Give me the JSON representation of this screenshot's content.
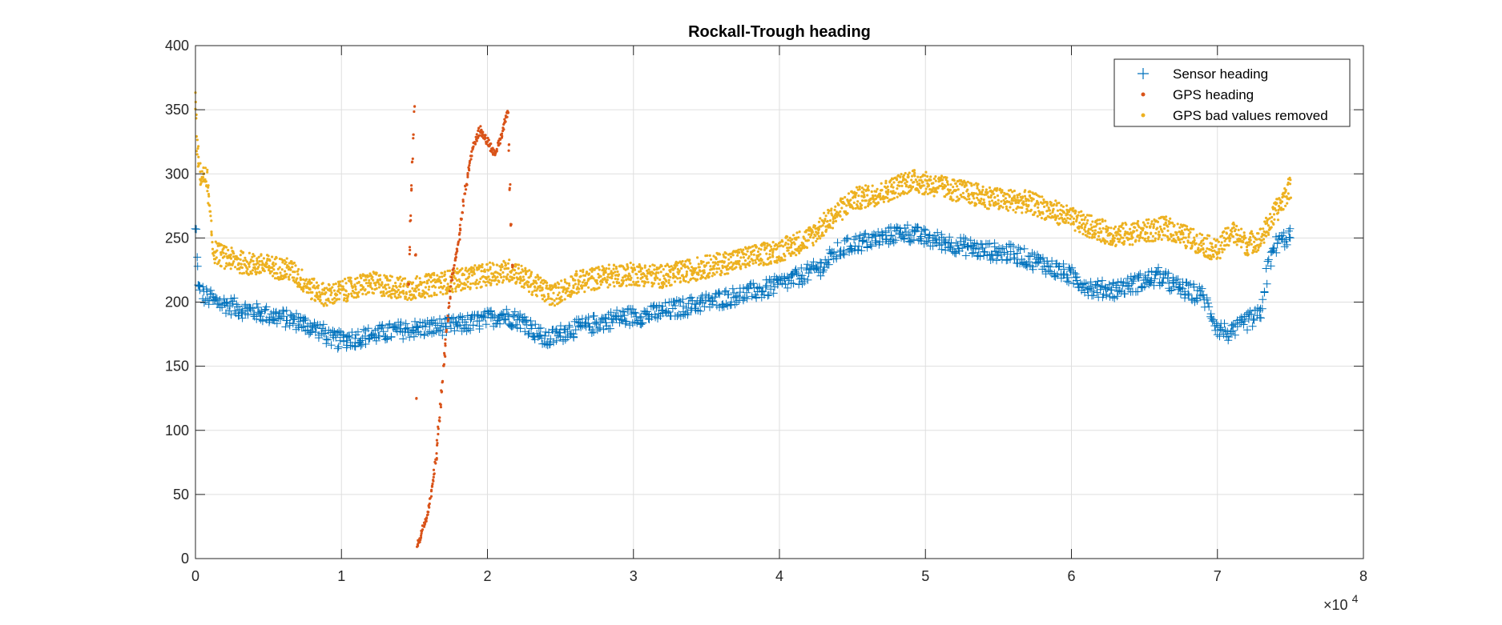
{
  "chart_data": {
    "type": "scatter",
    "title": "Rockall-Trough heading",
    "xlabel": "",
    "ylabel": "",
    "xlim": [
      0,
      80000
    ],
    "ylim": [
      0,
      400
    ],
    "x_ticks": [
      0,
      10000,
      20000,
      30000,
      40000,
      50000,
      60000,
      70000,
      80000
    ],
    "x_tick_labels": [
      "0",
      "1",
      "2",
      "3",
      "4",
      "5",
      "6",
      "7",
      "8"
    ],
    "y_ticks": [
      0,
      50,
      100,
      150,
      200,
      250,
      300,
      350,
      400
    ],
    "y_tick_labels": [
      "0",
      "50",
      "100",
      "150",
      "200",
      "250",
      "300",
      "350",
      "400"
    ],
    "x_exponent_base": "×10",
    "x_exponent_power": "4",
    "grid": true,
    "legend_position": "top-right",
    "series": [
      {
        "name": "Sensor heading",
        "marker": "plus",
        "color": "#0072BD",
        "noise": 7,
        "x": [
          0,
          200,
          600,
          1500,
          3000,
          5000,
          7000,
          8500,
          9500,
          11000,
          12500,
          14000,
          16000,
          18000,
          19500,
          21000,
          22500,
          24000,
          25500,
          27000,
          29000,
          31000,
          33000,
          35000,
          37000,
          39000,
          41000,
          43000,
          44000,
          45000,
          47000,
          48500,
          50000,
          52000,
          54000,
          56000,
          58000,
          60000,
          61500,
          63000,
          64500,
          66000,
          67500,
          69000,
          70000,
          71000,
          72000,
          73000,
          73500,
          74000,
          75000
        ],
        "y": [
          255,
          210,
          205,
          200,
          195,
          190,
          185,
          178,
          170,
          172,
          175,
          178,
          180,
          182,
          185,
          190,
          185,
          170,
          178,
          182,
          188,
          190,
          195,
          200,
          205,
          210,
          218,
          228,
          240,
          245,
          250,
          255,
          250,
          245,
          240,
          238,
          230,
          220,
          210,
          210,
          215,
          220,
          210,
          205,
          180,
          175,
          185,
          190,
          230,
          245,
          252
        ]
      },
      {
        "name": "GPS heading",
        "marker": "dot",
        "color": "#D95319",
        "noise": 3,
        "x": [
          14600,
          14800,
          15000,
          15200,
          15500,
          16000,
          16500,
          17000,
          17500,
          18000,
          18500,
          19000,
          19500,
          20000,
          20500,
          21000,
          21400,
          21700
        ],
        "y": [
          215,
          290,
          350,
          10,
          20,
          40,
          80,
          150,
          215,
          245,
          290,
          320,
          335,
          325,
          315,
          330,
          350,
          230
        ]
      },
      {
        "name": "GPS bad values removed",
        "marker": "dot",
        "color": "#EDB120",
        "noise": 9,
        "x": [
          0,
          100,
          300,
          800,
          1200,
          2000,
          3500,
          5000,
          6500,
          8000,
          9000,
          10500,
          12000,
          13500,
          14500,
          21700,
          23000,
          24500,
          26000,
          28000,
          30000,
          32000,
          34000,
          36000,
          38000,
          40000,
          42000,
          43500,
          45000,
          47000,
          49000,
          51000,
          53000,
          55000,
          57000,
          59000,
          61000,
          63000,
          65000,
          66500,
          68000,
          69000,
          70000,
          71000,
          72000,
          73000,
          74000,
          75000
        ],
        "y": [
          355,
          320,
          300,
          295,
          240,
          235,
          230,
          228,
          225,
          210,
          205,
          210,
          215,
          212,
          210,
          225,
          215,
          205,
          215,
          220,
          222,
          220,
          225,
          230,
          235,
          240,
          250,
          265,
          280,
          285,
          295,
          290,
          285,
          280,
          278,
          270,
          260,
          252,
          255,
          258,
          250,
          245,
          240,
          255,
          245,
          250,
          270,
          290
        ]
      }
    ]
  }
}
